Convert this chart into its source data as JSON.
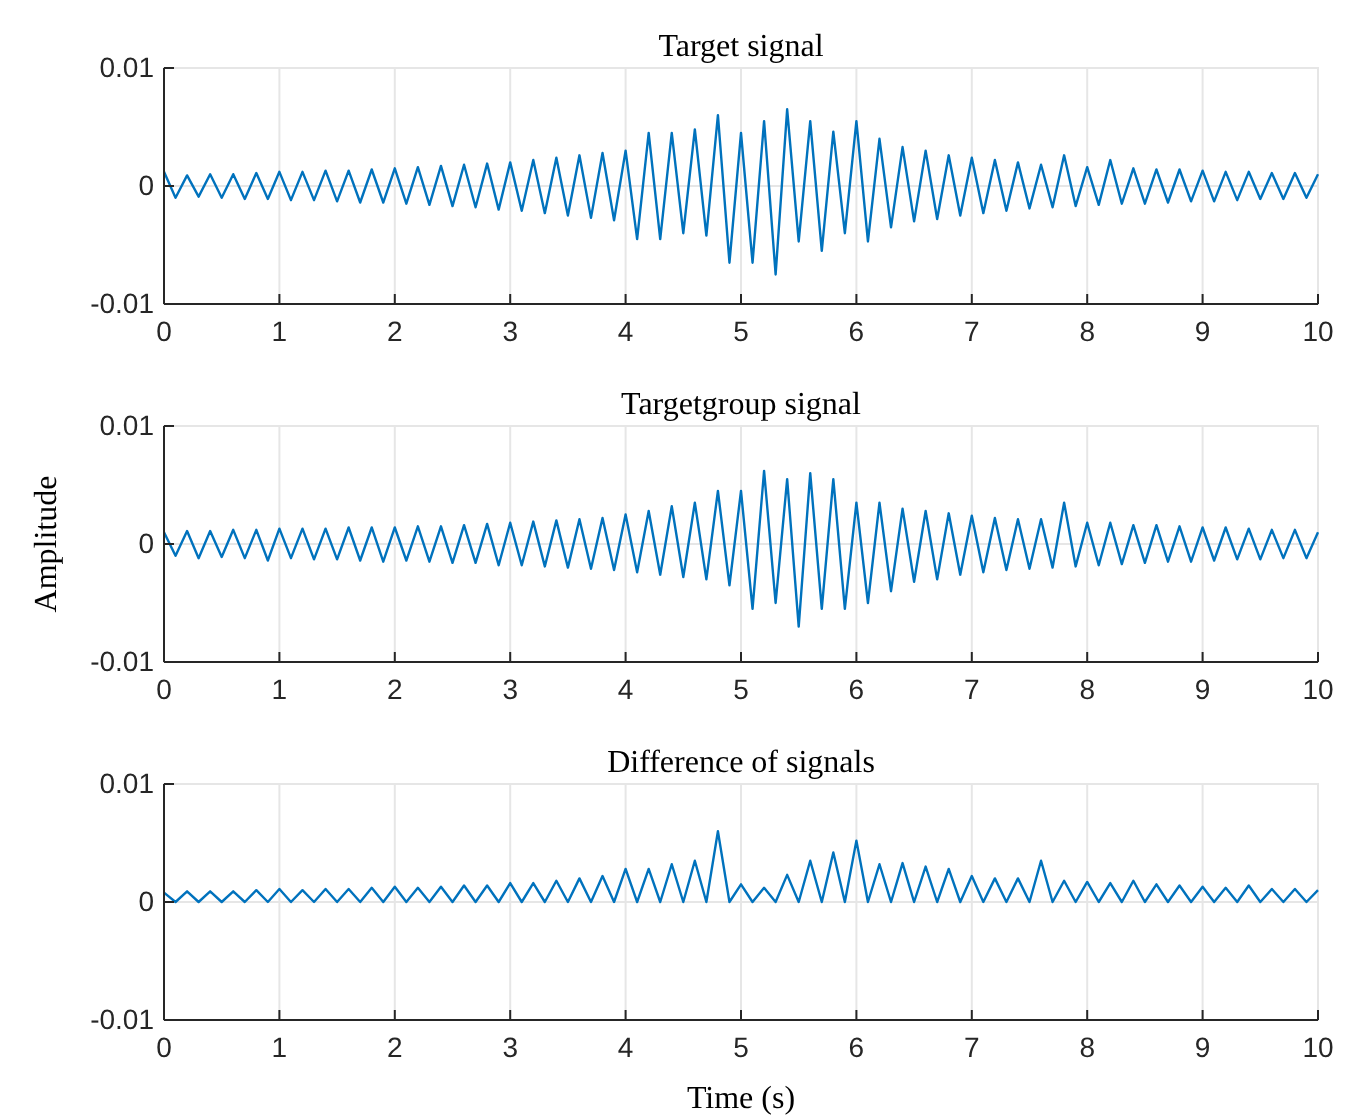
{
  "chart_data": [
    {
      "type": "line",
      "title": "Target signal",
      "color": "#0072bd",
      "grid": true,
      "xlim": [
        0,
        10
      ],
      "ylim": [
        -0.01,
        0.01
      ],
      "xticks": [
        0,
        1,
        2,
        3,
        4,
        5,
        6,
        7,
        8,
        9,
        10
      ],
      "yticks": [
        -0.01,
        0,
        0.01
      ],
      "x": [
        0,
        0.1,
        0.2,
        0.3,
        0.4,
        0.5,
        0.6,
        0.7,
        0.8,
        0.9,
        1,
        1.1,
        1.2,
        1.3,
        1.4,
        1.5,
        1.6,
        1.7,
        1.8,
        1.9,
        2,
        2.1,
        2.2,
        2.3,
        2.4,
        2.5,
        2.6,
        2.7,
        2.8,
        2.9,
        3,
        3.1,
        3.2,
        3.3,
        3.4,
        3.5,
        3.6,
        3.7,
        3.8,
        3.9,
        4,
        4.1,
        4.2,
        4.3,
        4.4,
        4.5,
        4.6,
        4.7,
        4.8,
        4.9,
        5,
        5.1,
        5.2,
        5.3,
        5.4,
        5.5,
        5.6,
        5.7,
        5.8,
        5.9,
        6,
        6.1,
        6.2,
        6.3,
        6.4,
        6.5,
        6.6,
        6.7,
        6.8,
        6.9,
        7,
        7.1,
        7.2,
        7.3,
        7.4,
        7.5,
        7.6,
        7.7,
        7.8,
        7.9,
        8,
        8.1,
        8.2,
        8.3,
        8.4,
        8.5,
        8.6,
        8.7,
        8.8,
        8.9,
        9,
        9.1,
        9.2,
        9.3,
        9.4,
        9.5,
        9.6,
        9.7,
        9.8,
        9.9,
        10
      ],
      "values": [
        0.0012,
        -0.001,
        0.0009,
        -0.0009,
        0.001,
        -0.001,
        0.001,
        -0.0011,
        0.0011,
        -0.0011,
        0.0012,
        -0.0012,
        0.0012,
        -0.0012,
        0.0013,
        -0.0013,
        0.0013,
        -0.0014,
        0.0014,
        -0.0014,
        0.0015,
        -0.0015,
        0.0016,
        -0.0016,
        0.0017,
        -0.0017,
        0.0018,
        -0.0018,
        0.0019,
        -0.002,
        0.002,
        -0.0021,
        0.0022,
        -0.0023,
        0.0024,
        -0.0025,
        0.0026,
        -0.0027,
        0.0028,
        -0.0029,
        0.003,
        -0.0045,
        0.0045,
        -0.0045,
        0.0045,
        -0.004,
        0.0048,
        -0.0042,
        0.006,
        -0.0065,
        0.0045,
        -0.0065,
        0.0055,
        -0.0075,
        0.0065,
        -0.0047,
        0.0055,
        -0.0055,
        0.0046,
        -0.004,
        0.0055,
        -0.0047,
        0.004,
        -0.0035,
        0.0033,
        -0.003,
        0.003,
        -0.0028,
        0.0026,
        -0.0025,
        0.0024,
        -0.0023,
        0.0022,
        -0.0021,
        0.002,
        -0.0019,
        0.0018,
        -0.0018,
        0.0026,
        -0.0017,
        0.0016,
        -0.0016,
        0.0022,
        -0.0015,
        0.0015,
        -0.0015,
        0.0014,
        -0.0014,
        0.0014,
        -0.0013,
        0.0013,
        -0.0013,
        0.0012,
        -0.0012,
        0.0012,
        -0.0011,
        0.0011,
        -0.0011,
        0.0011,
        -0.001,
        0.001
      ]
    },
    {
      "type": "line",
      "title": "Targetgroup signal",
      "ylabel": "Amplitude",
      "color": "#0072bd",
      "grid": true,
      "xlim": [
        0,
        10
      ],
      "ylim": [
        -0.01,
        0.01
      ],
      "xticks": [
        0,
        1,
        2,
        3,
        4,
        5,
        6,
        7,
        8,
        9,
        10
      ],
      "yticks": [
        -0.01,
        0,
        0.01
      ],
      "x": [
        0,
        0.1,
        0.2,
        0.3,
        0.4,
        0.5,
        0.6,
        0.7,
        0.8,
        0.9,
        1,
        1.1,
        1.2,
        1.3,
        1.4,
        1.5,
        1.6,
        1.7,
        1.8,
        1.9,
        2,
        2.1,
        2.2,
        2.3,
        2.4,
        2.5,
        2.6,
        2.7,
        2.8,
        2.9,
        3,
        3.1,
        3.2,
        3.3,
        3.4,
        3.5,
        3.6,
        3.7,
        3.8,
        3.9,
        4,
        4.1,
        4.2,
        4.3,
        4.4,
        4.5,
        4.6,
        4.7,
        4.8,
        4.9,
        5,
        5.1,
        5.2,
        5.3,
        5.4,
        5.5,
        5.6,
        5.7,
        5.8,
        5.9,
        6,
        6.1,
        6.2,
        6.3,
        6.4,
        6.5,
        6.6,
        6.7,
        6.8,
        6.9,
        7,
        7.1,
        7.2,
        7.3,
        7.4,
        7.5,
        7.6,
        7.7,
        7.8,
        7.9,
        8,
        8.1,
        8.2,
        8.3,
        8.4,
        8.5,
        8.6,
        8.7,
        8.8,
        8.9,
        9,
        9.1,
        9.2,
        9.3,
        9.4,
        9.5,
        9.6,
        9.7,
        9.8,
        9.9,
        10
      ],
      "values": [
        0.001,
        -0.001,
        0.0011,
        -0.0012,
        0.0011,
        -0.0011,
        0.0012,
        -0.0012,
        0.0012,
        -0.0014,
        0.0013,
        -0.0012,
        0.0013,
        -0.0013,
        0.0013,
        -0.0013,
        0.0014,
        -0.0014,
        0.0014,
        -0.0015,
        0.0014,
        -0.0014,
        0.0015,
        -0.0015,
        0.0015,
        -0.0016,
        0.0016,
        -0.0016,
        0.0017,
        -0.0018,
        0.0018,
        -0.0018,
        0.0019,
        -0.0019,
        0.002,
        -0.002,
        0.0021,
        -0.0021,
        0.0022,
        -0.0022,
        0.0025,
        -0.0024,
        0.0028,
        -0.0026,
        0.0032,
        -0.0028,
        0.0035,
        -0.003,
        0.0045,
        -0.0035,
        0.0045,
        -0.0055,
        0.0062,
        -0.005,
        0.0055,
        -0.007,
        0.006,
        -0.0055,
        0.0055,
        -0.0055,
        0.0035,
        -0.005,
        0.0035,
        -0.004,
        0.003,
        -0.0032,
        0.0028,
        -0.003,
        0.0026,
        -0.0026,
        0.0024,
        -0.0024,
        0.0022,
        -0.0022,
        0.0021,
        -0.0021,
        0.0021,
        -0.002,
        0.0035,
        -0.0019,
        0.0018,
        -0.0018,
        0.0018,
        -0.0017,
        0.0016,
        -0.0016,
        0.0016,
        -0.0015,
        0.0015,
        -0.0015,
        0.0014,
        -0.0014,
        0.0014,
        -0.0013,
        0.0013,
        -0.0013,
        0.0012,
        -0.0012,
        0.0012,
        -0.0012,
        0.001
      ]
    },
    {
      "type": "line",
      "title": "Difference of signals",
      "xlabel": "Time (s)",
      "color": "#0072bd",
      "grid": true,
      "xlim": [
        0,
        10
      ],
      "ylim": [
        -0.01,
        0.01
      ],
      "xticks": [
        0,
        1,
        2,
        3,
        4,
        5,
        6,
        7,
        8,
        9,
        10
      ],
      "yticks": [
        -0.01,
        0,
        0.01
      ],
      "x": [
        0,
        0.1,
        0.2,
        0.3,
        0.4,
        0.5,
        0.6,
        0.7,
        0.8,
        0.9,
        1,
        1.1,
        1.2,
        1.3,
        1.4,
        1.5,
        1.6,
        1.7,
        1.8,
        1.9,
        2,
        2.1,
        2.2,
        2.3,
        2.4,
        2.5,
        2.6,
        2.7,
        2.8,
        2.9,
        3,
        3.1,
        3.2,
        3.3,
        3.4,
        3.5,
        3.6,
        3.7,
        3.8,
        3.9,
        4,
        4.1,
        4.2,
        4.3,
        4.4,
        4.5,
        4.6,
        4.7,
        4.8,
        4.9,
        5,
        5.1,
        5.2,
        5.3,
        5.4,
        5.5,
        5.6,
        5.7,
        5.8,
        5.9,
        6,
        6.1,
        6.2,
        6.3,
        6.4,
        6.5,
        6.6,
        6.7,
        6.8,
        6.9,
        7,
        7.1,
        7.2,
        7.3,
        7.4,
        7.5,
        7.6,
        7.7,
        7.8,
        7.9,
        8,
        8.1,
        8.2,
        8.3,
        8.4,
        8.5,
        8.6,
        8.7,
        8.8,
        8.9,
        9,
        9.1,
        9.2,
        9.3,
        9.4,
        9.5,
        9.6,
        9.7,
        9.8,
        9.9,
        10
      ],
      "values": [
        0.0008,
        0,
        0.0009,
        0,
        0.0009,
        0,
        0.0009,
        0,
        0.001,
        0,
        0.0011,
        0,
        0.001,
        0,
        0.0011,
        0,
        0.0011,
        0,
        0.0012,
        0,
        0.0013,
        0,
        0.0012,
        0,
        0.0013,
        0,
        0.0014,
        0,
        0.0014,
        0,
        0.0016,
        0,
        0.0016,
        0,
        0.0018,
        0,
        0.002,
        0,
        0.0022,
        0,
        0.0028,
        0,
        0.0028,
        0,
        0.0032,
        0,
        0.0035,
        0,
        0.006,
        0,
        0.0015,
        0,
        0.0012,
        0,
        0.0023,
        0,
        0.0035,
        0,
        0.0042,
        0,
        0.0052,
        0,
        0.0032,
        0,
        0.0033,
        0,
        0.003,
        0,
        0.0028,
        0,
        0.0022,
        0,
        0.002,
        0,
        0.002,
        0,
        0.0035,
        0,
        0.0018,
        0,
        0.0017,
        0,
        0.0016,
        0,
        0.0018,
        0,
        0.0015,
        0,
        0.0014,
        0,
        0.0013,
        0,
        0.0012,
        0,
        0.0014,
        0,
        0.0011,
        0,
        0.0011,
        0,
        0.001
      ]
    }
  ]
}
